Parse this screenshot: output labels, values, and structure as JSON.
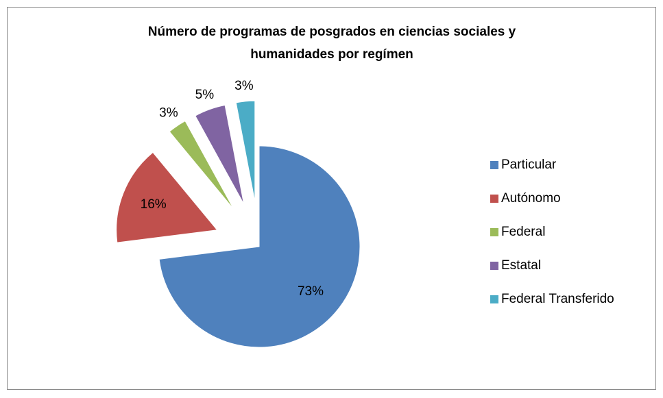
{
  "chart_data": {
    "type": "pie",
    "title": "Número de programas de posgrados en ciencias sociales y humanidades por regímen",
    "categories": [
      "Particular",
      "Autónomo",
      "Federal",
      "Estatal",
      "Federal Transferido"
    ],
    "values": [
      73,
      16,
      3,
      5,
      3
    ],
    "value_labels": [
      "73%",
      "16%",
      "3%",
      "5%",
      "3%"
    ],
    "colors": [
      "#4f81bd",
      "#c0504d",
      "#9bbb59",
      "#8064a2",
      "#4bacc6"
    ],
    "legend": "right"
  }
}
